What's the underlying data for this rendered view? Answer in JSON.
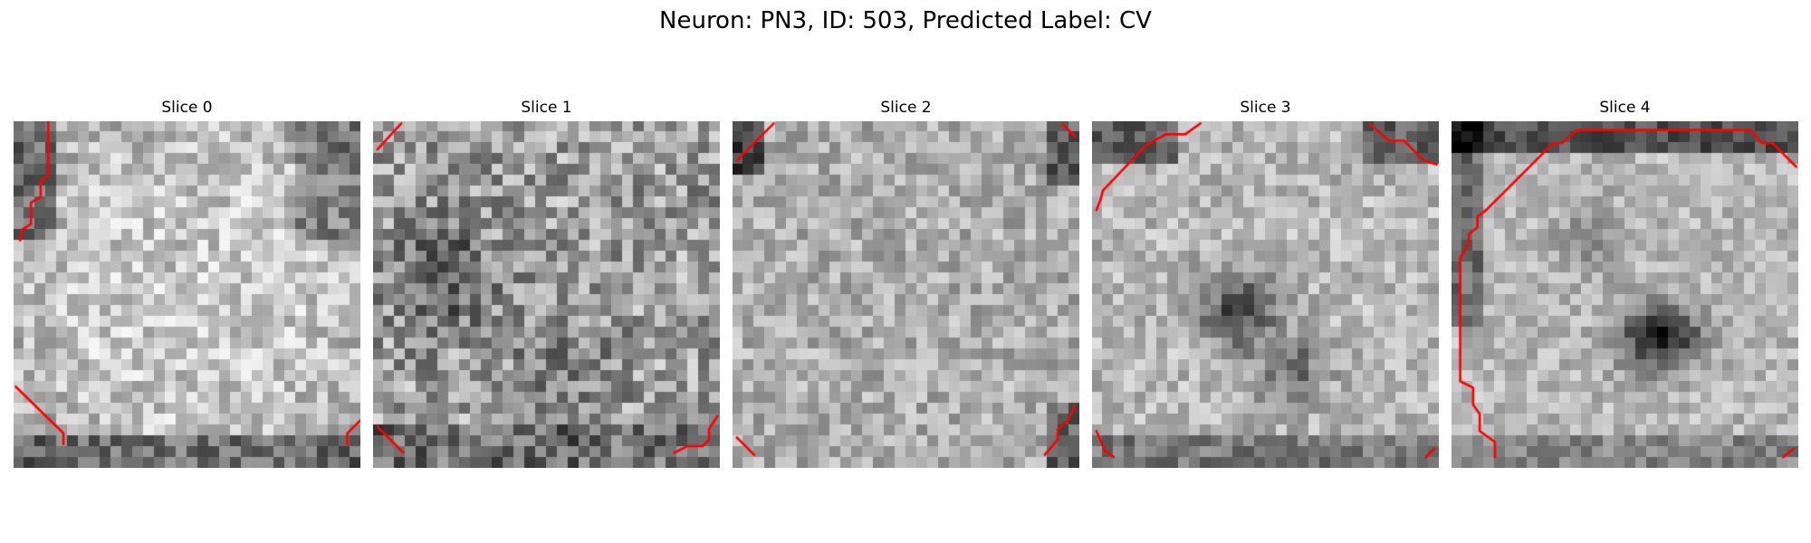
{
  "figure": {
    "title": "Neuron: PN3, ID: 503, Predicted Label: CV"
  },
  "panels": [
    {
      "title": "Slice 0"
    },
    {
      "title": "Slice 1"
    },
    {
      "title": "Slice 2"
    },
    {
      "title": "Slice 3"
    },
    {
      "title": "Slice 4"
    }
  ],
  "image": {
    "colormap": "grayscale",
    "grid_resolution": [
      32,
      32
    ],
    "contour_color": "#ff0000"
  }
}
